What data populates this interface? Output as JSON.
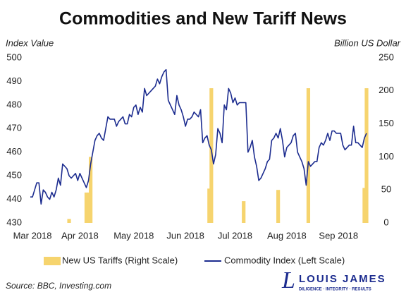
{
  "chart_data": {
    "type": "combo",
    "title": "Commodities and New Tariff News",
    "ylabel": "Index Value",
    "y2label": "Billion US Dollar",
    "categories": [
      null,
      "Mar 2018",
      null,
      null,
      null,
      null,
      null,
      null,
      null,
      null,
      null,
      null,
      null,
      null,
      null,
      null,
      null,
      null,
      null,
      null,
      null,
      null,
      null,
      "Apr 2018",
      null,
      null,
      null,
      null,
      null,
      null,
      null,
      null,
      null,
      null,
      null,
      null,
      null,
      null,
      null,
      null,
      null,
      null,
      null,
      null,
      null,
      null,
      null,
      null,
      "May 2018",
      null,
      null,
      null,
      null,
      null,
      null,
      null,
      null,
      null,
      null,
      null,
      null,
      null,
      null,
      null,
      null,
      null,
      null,
      null,
      null,
      null,
      null,
      null,
      "Jun 2018",
      null,
      null,
      null,
      null,
      null,
      null,
      null,
      null,
      null,
      null,
      null,
      null,
      null,
      null,
      null,
      null,
      null,
      null,
      null,
      null,
      null,
      null,
      "Jul 2018",
      null,
      null,
      null,
      null,
      null,
      null,
      null,
      null,
      null,
      null,
      null,
      null,
      null,
      null,
      null,
      null,
      null,
      null,
      null,
      null,
      null,
      null,
      null,
      "Aug 2018",
      null,
      null,
      null,
      null,
      null,
      null,
      null,
      null,
      null,
      null,
      null,
      null,
      null,
      null,
      null,
      null,
      null,
      null,
      null,
      null,
      null,
      null,
      null,
      "Sep 2018",
      null,
      null,
      null,
      null,
      null,
      null,
      null,
      null,
      null,
      null,
      null,
      null,
      null
    ],
    "series": [
      {
        "name": "New US Tariffs (Right Scale)",
        "type": "bar",
        "axis": "y2",
        "color": "#f6d46e",
        "values": [
          null,
          null,
          null,
          null,
          null,
          null,
          null,
          null,
          null,
          null,
          null,
          null,
          null,
          null,
          null,
          null,
          null,
          null,
          6,
          null,
          null,
          null,
          null,
          null,
          null,
          null,
          46,
          46,
          100,
          null,
          null,
          null,
          null,
          null,
          null,
          null,
          null,
          null,
          null,
          null,
          null,
          null,
          null,
          null,
          null,
          null,
          null,
          null,
          null,
          null,
          null,
          null,
          null,
          null,
          null,
          null,
          null,
          null,
          null,
          null,
          null,
          null,
          null,
          null,
          null,
          null,
          null,
          null,
          null,
          null,
          null,
          null,
          null,
          null,
          null,
          null,
          null,
          null,
          null,
          null,
          null,
          null,
          null,
          52,
          204,
          null,
          null,
          null,
          null,
          null,
          null,
          null,
          null,
          null,
          null,
          null,
          null,
          null,
          null,
          33,
          null,
          null,
          null,
          null,
          null,
          null,
          null,
          null,
          null,
          null,
          null,
          null,
          null,
          null,
          null,
          50,
          null,
          null,
          null,
          null,
          null,
          null,
          null,
          null,
          null,
          null,
          null,
          null,
          null,
          204,
          null,
          null,
          null,
          null,
          null,
          null,
          null,
          null,
          null,
          null,
          null,
          null,
          null,
          null,
          null,
          null,
          null,
          null,
          null,
          null,
          null,
          null,
          null,
          null,
          null,
          53,
          204
        ]
      },
      {
        "name": "Commodity Index (Left Scale)",
        "type": "line",
        "color": "#1c2c8f",
        "values": [
          441,
          441,
          444,
          447,
          447,
          438,
          444,
          443,
          441,
          440,
          443,
          441,
          444,
          449,
          446,
          455,
          454,
          453,
          450,
          449,
          450,
          451,
          448,
          451,
          449,
          447,
          445,
          448,
          455,
          460,
          465,
          467,
          468,
          466,
          465,
          470,
          475,
          474,
          474,
          474,
          471,
          473,
          474,
          475,
          472,
          472,
          476,
          475,
          479,
          480,
          476,
          479,
          477,
          487,
          484,
          485,
          486,
          487,
          488,
          491,
          489,
          492,
          494,
          495,
          482,
          480,
          478,
          476,
          484,
          480,
          478,
          475,
          471,
          474,
          474,
          475,
          477,
          476,
          475,
          478,
          464,
          466,
          467,
          463,
          461,
          455,
          459,
          470,
          468,
          464,
          480,
          478,
          487,
          485,
          481,
          483,
          480,
          481,
          481,
          481,
          481,
          460,
          462,
          465,
          458,
          454,
          448,
          449,
          451,
          453,
          456,
          457,
          465,
          466,
          468,
          466,
          470,
          465,
          458,
          462,
          463,
          464,
          467,
          468,
          460,
          458,
          456,
          453,
          446,
          456,
          454,
          455,
          456,
          456,
          462,
          464,
          463,
          465,
          468,
          465,
          469,
          469,
          468,
          468,
          468,
          463,
          461,
          462,
          463,
          463,
          471,
          464,
          464,
          463,
          462,
          466,
          468
        ]
      }
    ],
    "ylim": [
      430,
      500
    ],
    "yticks": [
      430,
      440,
      450,
      460,
      470,
      480,
      490,
      500
    ],
    "y2lim": [
      0,
      250
    ],
    "y2ticks": [
      0,
      50,
      100,
      150,
      200,
      250
    ],
    "grid": false,
    "legend": "bottom"
  },
  "source": "Source: BBC, Investing.com",
  "logo": {
    "mark": "L",
    "name": "LOUIS JAMES",
    "tagline": "DILIGENCE · INTEGRITY · RESULTS"
  }
}
